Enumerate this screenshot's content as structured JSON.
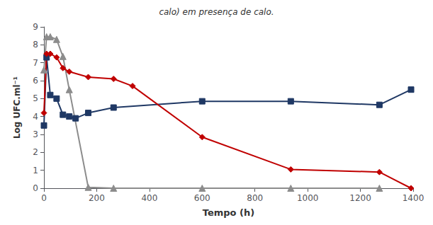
{
  "chart_data": {
    "type": "line",
    "title": "calo) em presença de calo.",
    "xlabel": "Tempo (h)",
    "ylabel": "Log UFC.ml⁻¹",
    "xlim": [
      0,
      1400
    ],
    "xticks": [
      0,
      200,
      400,
      600,
      800,
      1000,
      1200,
      1400
    ],
    "ylim": [
      0,
      9
    ],
    "yticks": [
      0,
      1,
      2,
      3,
      4,
      5,
      6,
      7,
      8,
      9
    ],
    "grid": false,
    "series": [
      {
        "color": "#8C8C8C",
        "marker": "triangle",
        "x": [
          0,
          10,
          24,
          48,
          72,
          96,
          168,
          264,
          600,
          936,
          1272
        ],
        "values": [
          6.6,
          8.45,
          8.45,
          8.3,
          7.35,
          5.5,
          0.05,
          0.0,
          0.0,
          0.0,
          0.0
        ]
      },
      {
        "color": "#1F3864",
        "marker": "square",
        "x": [
          0,
          10,
          24,
          48,
          72,
          96,
          120,
          168,
          264,
          600,
          936,
          1272,
          1392
        ],
        "values": [
          3.5,
          7.3,
          5.2,
          5.0,
          4.1,
          4.0,
          3.9,
          4.2,
          4.5,
          4.85,
          4.85,
          4.65,
          5.5
        ]
      },
      {
        "color": "#C00000",
        "marker": "diamond",
        "x": [
          0,
          10,
          24,
          48,
          72,
          96,
          168,
          264,
          336,
          600,
          936,
          1272,
          1392
        ],
        "values": [
          4.2,
          7.5,
          7.5,
          7.3,
          6.7,
          6.5,
          6.2,
          6.1,
          5.7,
          2.85,
          1.05,
          0.9,
          0.0
        ]
      }
    ]
  }
}
